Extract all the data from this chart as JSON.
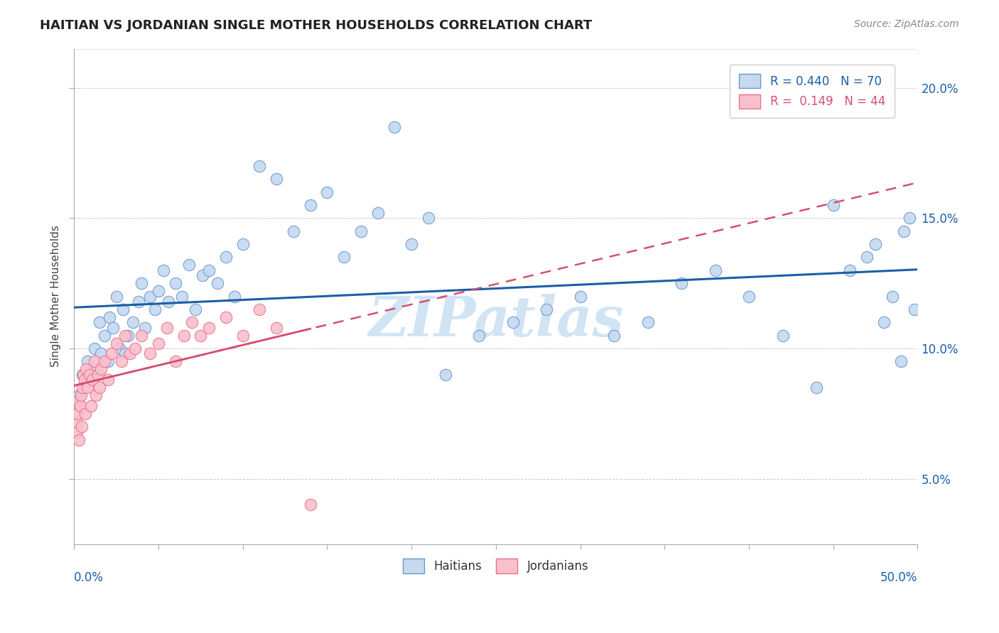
{
  "title": "HAITIAN VS JORDANIAN SINGLE MOTHER HOUSEHOLDS CORRELATION CHART",
  "source": "Source: ZipAtlas.com",
  "ylabel": "Single Mother Households",
  "ytick_values": [
    5.0,
    10.0,
    15.0,
    20.0
  ],
  "xmin": 0.0,
  "xmax": 50.0,
  "ymin": 2.5,
  "ymax": 21.5,
  "legend_blue_label": "R = 0.440   N = 70",
  "legend_pink_label": "R =  0.149   N = 44",
  "blue_fill_color": "#c5d9f0",
  "pink_fill_color": "#f9c0cb",
  "blue_edge_color": "#6699cc",
  "pink_edge_color": "#e87090",
  "blue_line_color": "#1a5fa8",
  "pink_line_color": "#d45070",
  "watermark": "ZIPatlas",
  "watermark_color": "#d0e4f4",
  "haiti_blue_label_color": "#1a5fa8",
  "jordan_pink_label_color": "#d45070",
  "haiti_x": [
    0.3,
    0.5,
    0.6,
    0.8,
    1.0,
    1.2,
    1.3,
    1.5,
    1.6,
    1.8,
    2.0,
    2.1,
    2.3,
    2.5,
    2.7,
    2.9,
    3.0,
    3.2,
    3.5,
    3.8,
    4.0,
    4.2,
    4.5,
    4.8,
    5.0,
    5.3,
    5.6,
    6.0,
    6.4,
    6.8,
    7.2,
    7.6,
    8.0,
    8.5,
    9.0,
    9.5,
    10.0,
    11.0,
    12.0,
    13.0,
    14.0,
    15.0,
    16.0,
    17.0,
    18.0,
    19.0,
    20.0,
    21.0,
    22.0,
    24.0,
    26.0,
    28.0,
    30.0,
    32.0,
    34.0,
    36.0,
    38.0,
    40.0,
    42.0,
    44.0,
    45.0,
    46.0,
    47.0,
    47.5,
    48.0,
    48.5,
    49.0,
    49.2,
    49.5,
    49.8
  ],
  "haiti_y": [
    8.2,
    9.0,
    8.5,
    9.5,
    8.8,
    10.0,
    9.2,
    11.0,
    9.8,
    10.5,
    9.5,
    11.2,
    10.8,
    12.0,
    10.0,
    11.5,
    9.8,
    10.5,
    11.0,
    11.8,
    12.5,
    10.8,
    12.0,
    11.5,
    12.2,
    13.0,
    11.8,
    12.5,
    12.0,
    13.2,
    11.5,
    12.8,
    13.0,
    12.5,
    13.5,
    12.0,
    14.0,
    17.0,
    16.5,
    14.5,
    15.5,
    16.0,
    13.5,
    14.5,
    15.2,
    18.5,
    14.0,
    15.0,
    9.0,
    10.5,
    11.0,
    11.5,
    12.0,
    10.5,
    11.0,
    12.5,
    13.0,
    12.0,
    10.5,
    8.5,
    15.5,
    13.0,
    13.5,
    14.0,
    11.0,
    12.0,
    9.5,
    14.5,
    15.0,
    11.5
  ],
  "jordan_x": [
    0.1,
    0.15,
    0.2,
    0.25,
    0.3,
    0.35,
    0.4,
    0.45,
    0.5,
    0.55,
    0.6,
    0.65,
    0.7,
    0.8,
    0.9,
    1.0,
    1.1,
    1.2,
    1.3,
    1.4,
    1.5,
    1.6,
    1.8,
    2.0,
    2.2,
    2.5,
    2.8,
    3.0,
    3.3,
    3.6,
    4.0,
    4.5,
    5.0,
    5.5,
    6.0,
    6.5,
    7.0,
    7.5,
    8.0,
    9.0,
    10.0,
    11.0,
    12.0,
    14.0
  ],
  "jordan_y": [
    7.2,
    6.8,
    7.5,
    8.0,
    6.5,
    7.8,
    8.2,
    7.0,
    8.5,
    9.0,
    8.8,
    7.5,
    9.2,
    8.5,
    9.0,
    7.8,
    8.8,
    9.5,
    8.2,
    9.0,
    8.5,
    9.2,
    9.5,
    8.8,
    9.8,
    10.2,
    9.5,
    10.5,
    9.8,
    10.0,
    10.5,
    9.8,
    10.2,
    10.8,
    9.5,
    10.5,
    11.0,
    10.5,
    10.8,
    11.2,
    10.5,
    11.5,
    10.8,
    4.0
  ]
}
